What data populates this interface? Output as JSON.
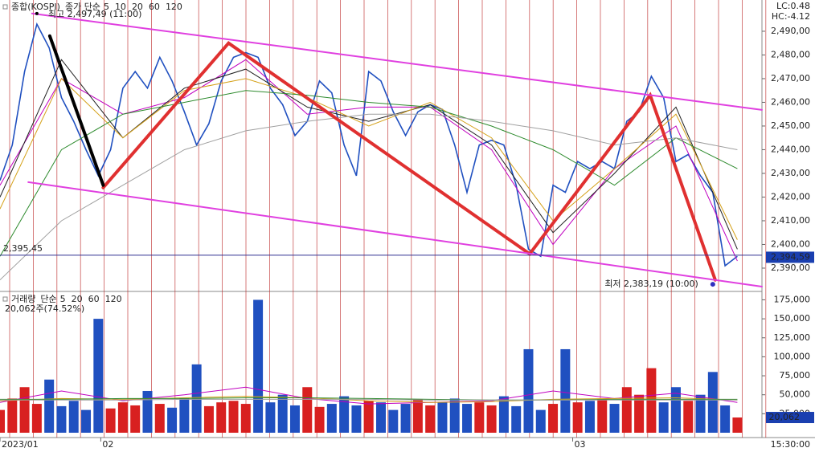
{
  "chart_data": [
    {
      "type": "line",
      "title": "종합(KOSPI)",
      "legend_label": "종가 단순",
      "xlim": [
        0,
        62
      ],
      "ylim": [
        2380.5,
        2503.2
      ],
      "xticks": [
        {
          "value": 0,
          "label": "2023/01"
        },
        {
          "value": 8.2,
          "label": "02"
        },
        {
          "value": 46.6,
          "label": "03"
        }
      ],
      "yticks": [
        {
          "value": 2390,
          "label": "2,390,00"
        },
        {
          "value": 2400,
          "label": "2,400,00"
        },
        {
          "value": 2410,
          "label": "2,410,00"
        },
        {
          "value": 2420,
          "label": "2,420,00"
        },
        {
          "value": 2430,
          "label": "2,430,00"
        },
        {
          "value": 2440,
          "label": "2,440,00"
        },
        {
          "value": 2450,
          "label": "2,450,00"
        },
        {
          "value": 2460,
          "label": "2,460,00"
        },
        {
          "value": 2470,
          "label": "2,470,00"
        },
        {
          "value": 2480,
          "label": "2,480,00"
        },
        {
          "value": 2490,
          "label": "2,490,00"
        }
      ],
      "color": "#2050c0",
      "x": [
        0,
        1,
        2,
        3,
        4,
        5,
        6,
        7,
        8,
        9,
        10,
        11,
        12,
        13,
        14,
        15,
        16,
        17,
        18,
        19,
        20,
        21,
        22,
        23,
        24,
        25,
        26,
        27,
        28,
        29,
        30,
        31,
        32,
        33,
        34,
        35,
        36,
        37,
        38,
        39,
        40,
        41,
        42,
        43,
        44,
        45,
        46,
        47,
        48,
        49,
        50,
        51,
        52,
        53,
        54,
        55,
        56,
        57,
        58,
        59,
        60
      ],
      "values": [
        2427,
        2442,
        2473,
        2493,
        2483,
        2462,
        2452,
        2440,
        2429,
        2440,
        2466,
        2473,
        2466,
        2479,
        2469,
        2456,
        2442,
        2451,
        2469,
        2479,
        2481,
        2479,
        2466,
        2459,
        2446,
        2452,
        2469,
        2464,
        2442,
        2429,
        2473,
        2469,
        2456,
        2446,
        2456,
        2459,
        2457,
        2442,
        2422,
        2442,
        2444,
        2442,
        2425,
        2398,
        2395,
        2425,
        2422,
        2435,
        2432,
        2435,
        2432,
        2452,
        2456,
        2471,
        2462,
        2435,
        2438,
        2429,
        2422,
        2391,
        2395
      ],
      "series": [
        {
          "name": "5",
          "color": "#c000c0",
          "x": [
            0,
            5,
            10,
            15,
            20,
            25,
            30,
            35,
            40,
            45,
            50,
            55,
            60
          ],
          "values": [
            2425,
            2470,
            2455,
            2462,
            2478,
            2455,
            2458,
            2458,
            2440,
            2400,
            2432,
            2450,
            2393
          ]
        },
        {
          "name": "10",
          "color": "#202020",
          "x": [
            0,
            5,
            10,
            15,
            20,
            25,
            30,
            35,
            40,
            45,
            50,
            55,
            60
          ],
          "values": [
            2420,
            2478,
            2445,
            2466,
            2474,
            2458,
            2452,
            2459,
            2442,
            2405,
            2430,
            2458,
            2398
          ]
        },
        {
          "name": "20",
          "color": "#d4a017",
          "x": [
            0,
            5,
            10,
            15,
            20,
            25,
            30,
            35,
            40,
            45,
            50,
            55,
            60
          ],
          "values": [
            2415,
            2470,
            2445,
            2465,
            2470,
            2462,
            2450,
            2460,
            2445,
            2410,
            2432,
            2455,
            2402
          ]
        },
        {
          "name": "60",
          "color": "#2e8b2e",
          "x": [
            0,
            5,
            10,
            15,
            20,
            25,
            30,
            35,
            40,
            45,
            50,
            55,
            60
          ],
          "values": [
            2395,
            2440,
            2455,
            2460,
            2465,
            2463,
            2460,
            2458,
            2450,
            2440,
            2425,
            2445,
            2432
          ]
        },
        {
          "name": "120",
          "color": "#a0a0a0",
          "x": [
            0,
            5,
            10,
            15,
            20,
            25,
            30,
            35,
            40,
            45,
            50,
            55,
            60
          ],
          "values": [
            2385,
            2410,
            2425,
            2440,
            2448,
            2452,
            2455,
            2455,
            2452,
            2448,
            2442,
            2445,
            2440
          ]
        }
      ],
      "trendlines": [
        {
          "color": "#e03030",
          "points": [
            [
              8.4,
              2424
            ],
            [
              18.6,
              2485
            ],
            [
              43.1,
              2396
            ],
            [
              52.9,
              2463
            ],
            [
              58.2,
              2385
            ]
          ]
        },
        {
          "color": "#000000",
          "points": [
            [
              4.05,
              2488
            ],
            [
              8.4,
              2425
            ]
          ]
        },
        {
          "color": "#e040e0",
          "points": [
            [
              2.6,
              2497.5
            ],
            [
              62,
              2456.8
            ]
          ]
        },
        {
          "color": "#e040e0",
          "points": [
            [
              2.3,
              2426.3
            ],
            [
              62,
              2382.2
            ]
          ]
        }
      ],
      "high": {
        "text": "최고 2,497,49 (11:00)",
        "x": 3,
        "y": 2497.49
      },
      "low": {
        "text": "최저 2,383,19 (10:00)",
        "x": 58,
        "y": 2383.19
      },
      "ref_line": {
        "value": 2395.45,
        "label": "2,395,45",
        "color": "#303090"
      },
      "current": {
        "value": 2394.59,
        "label": "2,394,59",
        "color": "#1a3fb0"
      },
      "lc": "LC:0.48",
      "hc": "HC:-4.12"
    },
    {
      "type": "bar",
      "title": "거래량",
      "legend_label": "단순",
      "info": "20,062주(74.52%)",
      "time_label": "15:30:00",
      "xlim": [
        0,
        62
      ],
      "ylim": [
        0,
        185000
      ],
      "yticks": [
        {
          "value": 25000,
          "label": "25,000"
        },
        {
          "value": 50000,
          "label": "50,000"
        },
        {
          "value": 75000,
          "label": "75,000"
        },
        {
          "value": 100000,
          "label": "100,000"
        },
        {
          "value": 125000,
          "label": "125,000"
        },
        {
          "value": 150000,
          "label": "150,000"
        },
        {
          "value": 175000,
          "label": "175,000"
        }
      ],
      "up_color": "#d82020",
      "down_color": "#2050c0",
      "x": [
        0,
        1,
        2,
        3,
        4,
        5,
        6,
        7,
        8,
        9,
        10,
        11,
        12,
        13,
        14,
        15,
        16,
        17,
        18,
        19,
        20,
        21,
        22,
        23,
        24,
        25,
        26,
        27,
        28,
        29,
        30,
        31,
        32,
        33,
        34,
        35,
        36,
        37,
        38,
        39,
        40,
        41,
        42,
        43,
        44,
        45,
        46,
        47,
        48,
        49,
        50,
        51,
        52,
        53,
        54,
        55,
        56,
        57,
        58,
        59,
        60
      ],
      "values": [
        30000,
        45000,
        60000,
        38000,
        70000,
        35000,
        42000,
        30000,
        150000,
        32000,
        40000,
        36000,
        55000,
        38000,
        33000,
        45000,
        90000,
        35000,
        40000,
        42000,
        38000,
        175000,
        40000,
        50000,
        36000,
        60000,
        34000,
        38000,
        48000,
        36000,
        42000,
        40000,
        30000,
        38000,
        44000,
        36000,
        40000,
        45000,
        38000,
        40000,
        36000,
        48000,
        35000,
        110000,
        30000,
        38000,
        110000,
        40000,
        42000,
        45000,
        38000,
        60000,
        50000,
        85000,
        40000,
        60000,
        42000,
        50000,
        80000,
        36000,
        20062
      ],
      "current": {
        "value": 20062,
        "label": "20,062",
        "color": "#1a3fb0"
      },
      "series": [
        {
          "name": "5",
          "color": "#c000c0",
          "x": [
            0,
            5,
            10,
            15,
            20,
            25,
            30,
            35,
            40,
            45,
            50,
            55,
            60
          ],
          "values": [
            40000,
            55000,
            42000,
            50000,
            60000,
            45000,
            38000,
            40000,
            42000,
            55000,
            45000,
            52000,
            40000
          ]
        },
        {
          "name": "20",
          "color": "#d4a017",
          "x": [
            0,
            5,
            10,
            15,
            20,
            25,
            30,
            35,
            40,
            45,
            50,
            55,
            60
          ],
          "values": [
            42000,
            45000,
            44000,
            46000,
            48000,
            46000,
            42000,
            40000,
            41000,
            44000,
            45000,
            46000,
            43000
          ]
        },
        {
          "name": "60",
          "color": "#2e8b2e",
          "x": [
            0,
            5,
            10,
            15,
            20,
            25,
            30,
            35,
            40,
            45,
            50,
            55,
            60
          ],
          "values": [
            44000,
            44000,
            45000,
            45000,
            46000,
            46000,
            45000,
            44000,
            43000,
            43000,
            44000,
            44000,
            44000
          ]
        },
        {
          "name": "120",
          "color": "#a0a0a0",
          "x": [
            0,
            5,
            10,
            15,
            20,
            25,
            30,
            35,
            40,
            45,
            50,
            55,
            60
          ],
          "values": [
            43000,
            43000,
            43000,
            44000,
            44000,
            44000,
            44000,
            43000,
            43000,
            43000,
            43000,
            43000,
            43000
          ]
        }
      ]
    }
  ]
}
